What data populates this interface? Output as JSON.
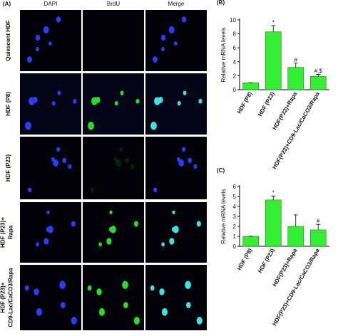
{
  "panel_a": {
    "label": "(A)",
    "columns": [
      "DAPI",
      "BrdU",
      "Merge"
    ],
    "rows": [
      [
        "Quiescent HDF"
      ],
      [
        "HDF (P8)"
      ],
      [
        "HDF (P23)"
      ],
      [
        "HDF (P23)+",
        "Rapa"
      ],
      [
        "HDF (P23)+",
        "CD9-Lac/CaCO3/Rapa"
      ]
    ]
  },
  "chart_data": [
    {
      "type": "bar",
      "panel_label": "(B)",
      "ylabel": "Relative mRNA levels",
      "categories": [
        "HDF (P8)",
        "HDF (P23)",
        "HDF(P23)+Rapa",
        "HDF(P23)+CD9-Lac/CaCO3/Rapa"
      ],
      "values": [
        1,
        8.3,
        3.2,
        1.9
      ],
      "errors": [
        0,
        0.9,
        0.6,
        0.3
      ],
      "annotations": [
        null,
        "*",
        "#",
        "#,$"
      ],
      "ylim": [
        0,
        10
      ],
      "yticks": [
        0,
        2,
        4,
        6,
        8,
        10
      ],
      "color": "#33ee33"
    },
    {
      "type": "bar",
      "panel_label": "(C)",
      "ylabel": "Relative mRNA levels",
      "categories": [
        "HDF (P8)",
        "HDF (P23)",
        "HDF(P23)+Rapa",
        "HDF(P23)+CD9-Lac/CaCO3/Rapa"
      ],
      "values": [
        1,
        4.65,
        2,
        1.65
      ],
      "errors": [
        0,
        0.4,
        1.15,
        0.55
      ],
      "annotations": [
        null,
        "*",
        null,
        "#"
      ],
      "ylim": [
        0,
        6
      ],
      "yticks": [
        0,
        1,
        2,
        3,
        4,
        5,
        6
      ],
      "color": "#33ee33"
    }
  ]
}
